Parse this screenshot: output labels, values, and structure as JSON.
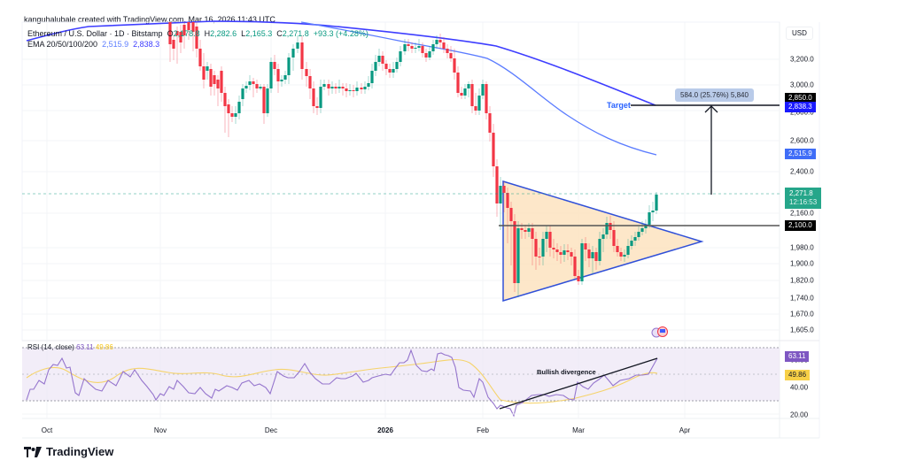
{
  "header": {
    "credit": "kanguhalubale created with TradingView.com, Mar 16, 2026 11:43 UTC",
    "symbol": "Ethereum / U.S. Dollar · 1D · Bitstamp",
    "ohlc": {
      "o_label": "O",
      "o": "2,178.8",
      "h_label": "H",
      "h": "2,282.6",
      "l_label": "L",
      "l": "2,165.3",
      "c_label": "C",
      "c": "2,271.8",
      "change": "+93.3 (+4.28%)"
    },
    "ema_label": "EMA 20/50/100/200",
    "ema_values": [
      "2,515.9",
      "2,838.3"
    ]
  },
  "price_axis": {
    "currency": "USD",
    "ticks": [
      "3,200.0",
      "3,000.0",
      "2,800.0",
      "2,600.0",
      "2,400.0",
      "2,160.0",
      "1,980.0",
      "1,900.0",
      "1,820.0",
      "1,740.0",
      "1,670.0",
      "1,605.0"
    ],
    "tags": {
      "target_high": "2,850.0",
      "ema200": "2,838.3",
      "ema100": "2,515.9",
      "last_price": "2,271.8",
      "countdown": "12:16:53",
      "breakout": "2,100.0"
    }
  },
  "rsi": {
    "label": "RSI (14, close)",
    "value": "63.11",
    "ma_value": "49.86",
    "axis_ticks": [
      "60.00",
      "40.00",
      "20.00"
    ],
    "tags": {
      "rsi": "63.11",
      "ma": "49.86"
    }
  },
  "annotations": {
    "target_label": "Target",
    "measure_label": "584.0 (25.76%) 5,840",
    "divergence_label": "Bullish divergence"
  },
  "x_axis": {
    "labels": [
      {
        "text": "Oct",
        "bold": false
      },
      {
        "text": "Nov",
        "bold": false
      },
      {
        "text": "Dec",
        "bold": false
      },
      {
        "text": "2026",
        "bold": true
      },
      {
        "text": "Feb",
        "bold": false
      },
      {
        "text": "Mar",
        "bold": false
      },
      {
        "text": "Apr",
        "bold": false
      }
    ]
  },
  "footer": {
    "brand": "TradingView"
  },
  "colors": {
    "up": "#089981",
    "down": "#f23645",
    "ema100": "#5b7cff",
    "ema200": "#3d3dff",
    "triangle_fill": "#fde3c0",
    "triangle_stroke": "#3050d8",
    "rsi_line": "#9575cd",
    "rsi_ma": "#f5d36b",
    "rsi_band": "#ede7f6"
  },
  "chart_data": {
    "type": "candlestick",
    "title": "Ethereum / U.S. Dollar · 1D · Bitstamp",
    "xlabel": "",
    "ylabel": "USD",
    "ylim": [
      1605,
      3300
    ],
    "x_ticks": [
      "Oct",
      "Nov",
      "Dec",
      "2026",
      "Feb",
      "Mar",
      "Apr"
    ],
    "last": {
      "open": 2178.8,
      "high": 2282.6,
      "low": 2165.3,
      "close": 2271.8,
      "change": 93.3,
      "change_pct": 4.28
    },
    "series": [
      {
        "name": "EMA 100",
        "last": 2515.9
      },
      {
        "name": "EMA 200",
        "last": 2838.3
      },
      {
        "name": "RSI (14, close)",
        "last": 63.11
      },
      {
        "name": "RSI MA",
        "last": 49.86
      }
    ],
    "approx_closes": {
      "late_Oct": 3650,
      "early_Nov": 3300,
      "mid_Nov": 2900,
      "late_Nov": 2950,
      "early_Dec": 3100,
      "mid_Dec": 2950,
      "late_Dec": 2950,
      "early_Jan": 3250,
      "mid_Jan": 3300,
      "late_Jan": 2900,
      "early_Feb": 2150,
      "mid_Feb": 1950,
      "late_Feb": 1900,
      "early_Mar": 2050,
      "mid_Mar": 2271.8
    },
    "patterns": {
      "symmetrical_triangle": {
        "apex_price": 2000,
        "top_start": 2330,
        "bottom_start": 1740
      },
      "breakout_level": 2100,
      "target": 2850,
      "measured_move": {
        "points": 584.0,
        "pct": 25.76
      }
    },
    "rsi_levels": {
      "upper": 70,
      "lower": 30
    },
    "grid": true,
    "legend_position": "top-left"
  }
}
